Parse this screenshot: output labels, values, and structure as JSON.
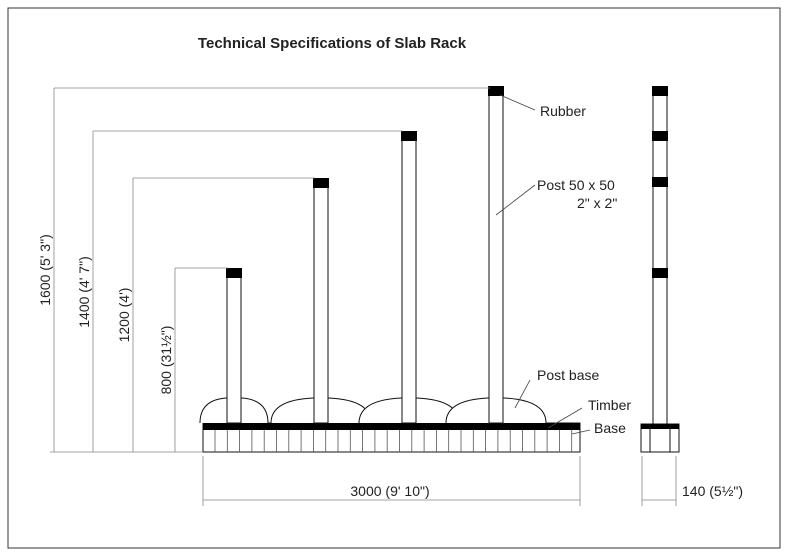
{
  "header": {
    "title": "Technical Specifications of Slab Rack"
  },
  "dimensions": {
    "heights": [
      "1600 (5' 3\")",
      "1400 (4' 7\")",
      "1200 (4')",
      "800 (31½\")"
    ],
    "width": "3000 (9' 10\")",
    "depth": "140 (5½\")"
  },
  "parts": {
    "rubber": "Rubber",
    "post": "Post 50 x 50",
    "post_imperial": "2\" x 2\"",
    "post_base": "Post base",
    "timber": "Timber",
    "base": "Base"
  }
}
